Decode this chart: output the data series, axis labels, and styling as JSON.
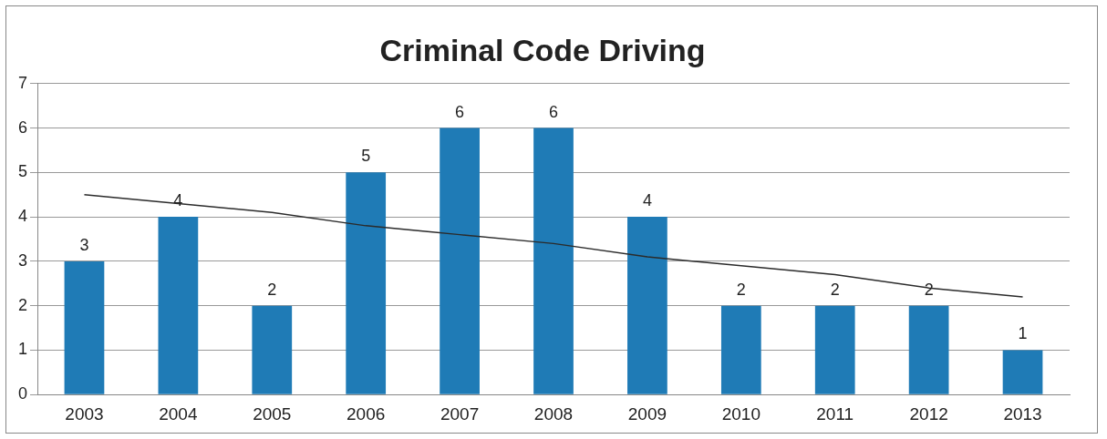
{
  "chart_data": {
    "type": "bar",
    "title": "Criminal Code Driving",
    "categories": [
      "2003",
      "2004",
      "2005",
      "2006",
      "2007",
      "2008",
      "2009",
      "2010",
      "2011",
      "2012",
      "2013"
    ],
    "series": [
      {
        "color": "#1f7bb6",
        "values": [
          3,
          4,
          2,
          5,
          6,
          6,
          4,
          2,
          2,
          2,
          1
        ],
        "value_labels": [
          "3",
          "4",
          "2",
          "5",
          "6",
          "6",
          "4",
          "2",
          "2",
          "2",
          "1"
        ]
      },
      {
        "type": "line",
        "color": "#2b2b2b",
        "values": [
          4.5,
          4.3,
          4.1,
          3.8,
          3.6,
          3.4,
          3.1,
          2.9,
          2.7,
          2.4,
          2.2
        ]
      }
    ],
    "ylim": [
      0,
      7
    ],
    "yticks": [
      0,
      1,
      2,
      3,
      4,
      5,
      6,
      7
    ],
    "grid": "y",
    "legend": false
  }
}
